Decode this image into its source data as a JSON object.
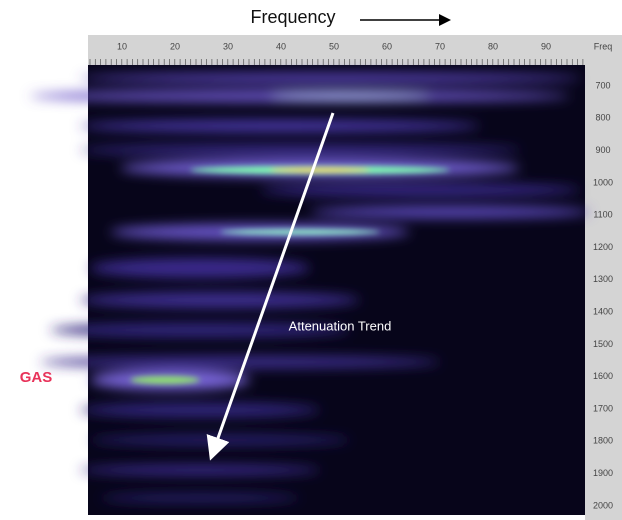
{
  "header": {
    "title": "Frequency"
  },
  "top_axis": {
    "ticks": [
      "10",
      "20",
      "30",
      "40",
      "50",
      "60",
      "70",
      "80",
      "90"
    ],
    "unit": "Freq"
  },
  "right_axis": {
    "ticks": [
      "700",
      "800",
      "900",
      "1000",
      "1100",
      "1200",
      "1300",
      "1400",
      "1500",
      "1600",
      "1700",
      "1800",
      "1900",
      "2000"
    ]
  },
  "annotations": {
    "trend": "Attenuation Trend",
    "gas": "GAS"
  }
}
